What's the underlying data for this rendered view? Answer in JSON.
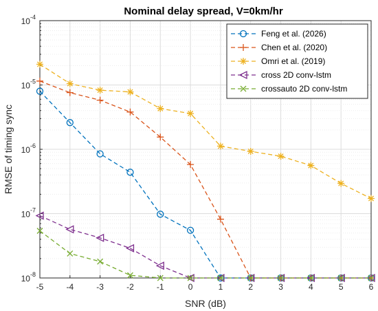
{
  "chart_data": {
    "type": "line",
    "title": "Nominal delay spread, V=0km/hr",
    "xlabel": "SNR (dB)",
    "ylabel": "RMSE of timing sync",
    "yscale": "log",
    "xlim": [
      -5,
      6
    ],
    "ylim": [
      1e-08,
      0.0001
    ],
    "x_ticks": [
      "-5",
      "-4",
      "-3",
      "-2",
      "-1",
      "0",
      "1",
      "2",
      "3",
      "4",
      "5",
      "6"
    ],
    "y_ticks": [
      {
        "value": 1e-08,
        "base": "10",
        "exp": "-8"
      },
      {
        "value": 1e-07,
        "base": "10",
        "exp": "-7"
      },
      {
        "value": 1e-06,
        "base": "10",
        "exp": "-6"
      },
      {
        "value": 1e-05,
        "base": "10",
        "exp": "-5"
      },
      {
        "value": 0.0001,
        "base": "10",
        "exp": "-4"
      }
    ],
    "grid": true,
    "legend_position": "top-right",
    "series": [
      {
        "name": "Feng et al. (2026)",
        "color": "#0072BD",
        "marker": "circle",
        "x": [
          -5,
          -4,
          -3,
          -2,
          -1,
          0,
          1,
          2,
          3,
          4,
          5,
          6
        ],
        "values": [
          8e-06,
          2.6e-06,
          8.5e-07,
          4.4e-07,
          9.8e-08,
          5.5e-08,
          1e-08,
          1e-08,
          1e-08,
          1e-08,
          1e-08,
          1e-08
        ]
      },
      {
        "name": "Chen et al. (2020)",
        "color": "#D95319",
        "marker": "plus",
        "x": [
          -5,
          -4,
          -3,
          -2,
          -1,
          0,
          1,
          2,
          3,
          4,
          5,
          6
        ],
        "values": [
          1.15e-05,
          7.6e-06,
          5.8e-06,
          3.8e-06,
          1.55e-06,
          5.8e-07,
          8.2e-08,
          1e-08,
          1e-08,
          1e-08,
          1e-08,
          1e-08
        ]
      },
      {
        "name": "Omri et al. (2019)",
        "color": "#EDB120",
        "marker": "asterisk",
        "x": [
          -5,
          -4,
          -3,
          -2,
          -1,
          0,
          1,
          2,
          3,
          4,
          5,
          6
        ],
        "values": [
          2.1e-05,
          1.05e-05,
          8.3e-06,
          7.8e-06,
          4.3e-06,
          3.6e-06,
          1.12e-06,
          9.3e-07,
          7.8e-07,
          5.6e-07,
          2.95e-07,
          1.72e-07
        ]
      },
      {
        "name": "cross 2D conv-lstm",
        "color": "#7E2F8E",
        "marker": "triangle-left",
        "x": [
          -5,
          -4,
          -3,
          -2,
          -1,
          0,
          1,
          2,
          3,
          4,
          5,
          6
        ],
        "values": [
          9.3e-08,
          5.7e-08,
          4.2e-08,
          2.9e-08,
          1.55e-08,
          1e-08,
          1e-08,
          1e-08,
          1e-08,
          1e-08,
          1e-08,
          1e-08
        ]
      },
      {
        "name": "crossauto 2D conv-lstm",
        "color": "#77AC30",
        "marker": "x",
        "x": [
          -5,
          -4,
          -3,
          -2,
          -1,
          0,
          1,
          2,
          3,
          4,
          5,
          6
        ],
        "values": [
          5.4e-08,
          2.4e-08,
          1.8e-08,
          1.1e-08,
          1e-08,
          1e-08,
          1e-08,
          1e-08,
          1e-08,
          1e-08,
          1e-08,
          1e-08
        ]
      }
    ]
  }
}
